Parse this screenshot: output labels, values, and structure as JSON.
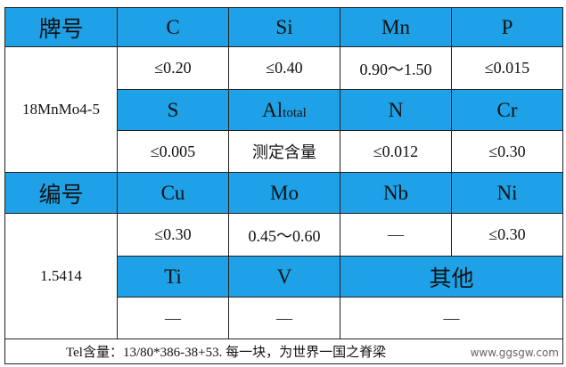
{
  "table": {
    "rows": [
      [
        "牌号",
        "C",
        "Si",
        "Mn",
        "P"
      ],
      [
        "18MnMo4-5",
        "≤0.20",
        "≤0.40",
        "0.90～1.50",
        "≤0.015"
      ],
      [
        "S",
        {
          "main": "Al",
          "sub": "total"
        },
        "N",
        "Cr"
      ],
      [
        "≤0.005",
        "测定含量",
        "≤0.012",
        "≤0.30"
      ],
      [
        "编号",
        "Cu",
        "Mo",
        "Nb",
        "Ni"
      ],
      [
        "1.5414",
        "≤0.30",
        "0.45～0.60",
        "—",
        "≤0.30"
      ],
      [
        "Ti",
        "V",
        "其他"
      ],
      [
        "—",
        "—",
        "—"
      ]
    ]
  },
  "footer": "Tel含量：13/80*386-38+53. 每一块，为世界一国之脊梁",
  "watermark": "www.ggsgw.com"
}
